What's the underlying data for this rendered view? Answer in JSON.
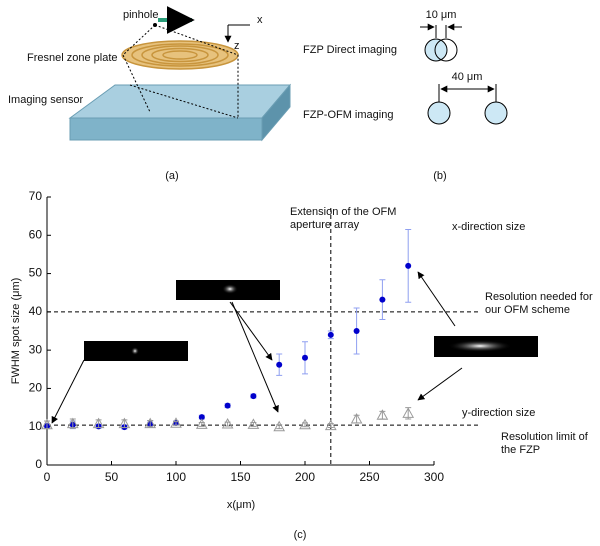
{
  "panel_a": {
    "pinhole": "pinhole",
    "x_axis": "x",
    "z_axis": "z",
    "zone_plate": "Fresnel zone plate",
    "sensor": "Imaging sensor",
    "caption": "(a)"
  },
  "panel_b": {
    "direct_size": "10 μm",
    "direct_label": "FZP Direct imaging",
    "ofm_size": "40 μm",
    "ofm_label": "FZP-OFM imaging",
    "caption": "(b)"
  },
  "chart_data": {
    "type": "scatter",
    "caption": "(c)",
    "xlabel": "x(μm)",
    "ylabel": "FWHM spot size (μm)",
    "x": [
      0,
      20,
      40,
      60,
      80,
      100,
      120,
      140,
      160,
      180,
      200,
      220,
      240,
      260,
      280
    ],
    "series": [
      {
        "name": "x-direction size",
        "color": "#0000cc",
        "marker": "circle",
        "values": [
          10.2,
          10.5,
          10.1,
          9.9,
          10.8,
          11,
          12.5,
          15.5,
          18,
          26.2,
          28,
          34,
          35,
          43.2,
          52
        ],
        "errors": [
          0.5,
          1,
          0.5,
          0.5,
          0.8,
          0.5,
          0.5,
          0.5,
          0.5,
          2.8,
          4.2,
          1,
          6,
          5.2,
          9.5
        ]
      },
      {
        "name": "y-direction size",
        "color": "#999999",
        "marker": "triangle",
        "values": [
          10.5,
          10.8,
          10.8,
          10.8,
          10.8,
          10.9,
          10.6,
          10.7,
          10.6,
          10,
          10.5,
          10.3,
          12,
          13,
          13.5
        ],
        "errors": [
          1,
          1.2,
          1,
          1,
          0.8,
          0.5,
          0.5,
          0.5,
          0.5,
          0.5,
          0.5,
          0.5,
          1,
          1,
          1.5
        ]
      }
    ],
    "xlim": [
      0,
      300
    ],
    "xticks": [
      0,
      50,
      100,
      150,
      200,
      250,
      300
    ],
    "ylim": [
      0,
      70
    ],
    "yticks": [
      0,
      10,
      20,
      30,
      40,
      50,
      60,
      70
    ],
    "hlines": [
      {
        "value": 40,
        "label_lines": [
          "Resolution needed for",
          "our OFM scheme"
        ]
      },
      {
        "value": 10.4,
        "label_lines": [
          "Resolution limit of",
          "the FZP"
        ]
      }
    ],
    "vline": {
      "value": 220,
      "label_lines": [
        "Extension of the OFM",
        "aperture array"
      ]
    }
  }
}
